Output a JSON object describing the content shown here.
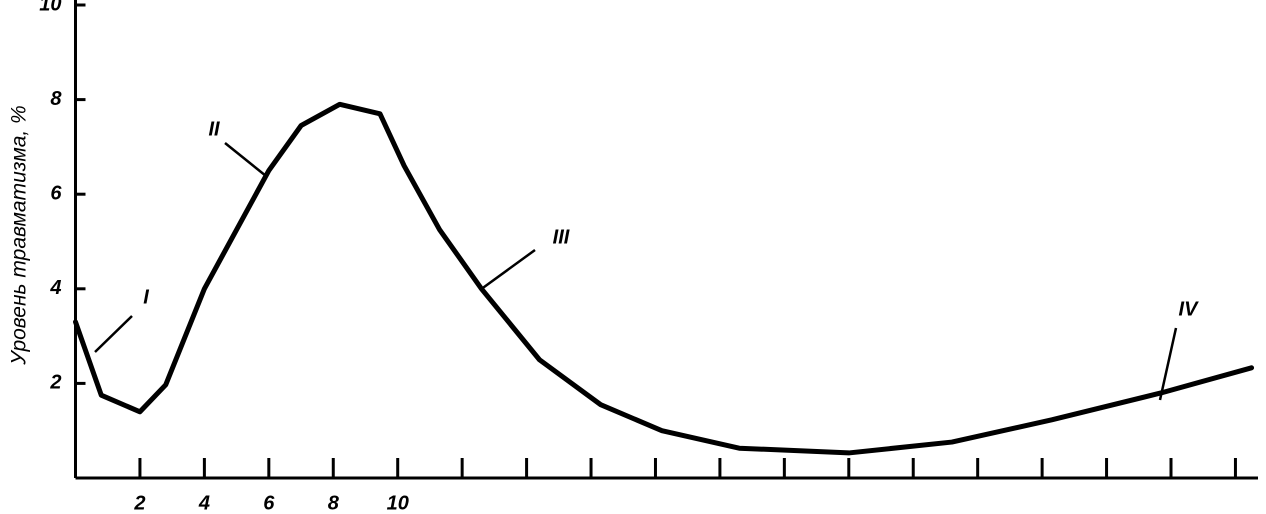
{
  "chart_data": {
    "type": "line",
    "ylabel": "Уровень травматизма, %",
    "annotations": [
      "I",
      "II",
      "III",
      "IV"
    ],
    "x": [
      0,
      0.8,
      2,
      2.8,
      4,
      6,
      7,
      8.2,
      9.45,
      10.2,
      11.3,
      12.6,
      14.4,
      16.3,
      18.2,
      20.6,
      24,
      27.2,
      30.3,
      33.7,
      36.5
    ],
    "values": [
      3.3,
      1.75,
      1.4,
      1.97,
      4.0,
      6.5,
      7.45,
      7.9,
      7.7,
      6.6,
      5.25,
      4.0,
      2.5,
      1.55,
      1.0,
      0.63,
      0.53,
      0.76,
      1.23,
      1.8,
      2.33
    ],
    "color": "#000000",
    "xlim": [
      0,
      36.7
    ],
    "ylim": [
      0,
      10
    ],
    "xticks": [
      2,
      4,
      6,
      8,
      10
    ],
    "xticks_unlabeled": [
      12,
      14,
      16,
      18,
      20,
      22,
      24,
      26,
      28,
      30,
      32,
      34,
      36
    ],
    "yticks": [
      2,
      4,
      6,
      8,
      10
    ],
    "grid": false
  }
}
